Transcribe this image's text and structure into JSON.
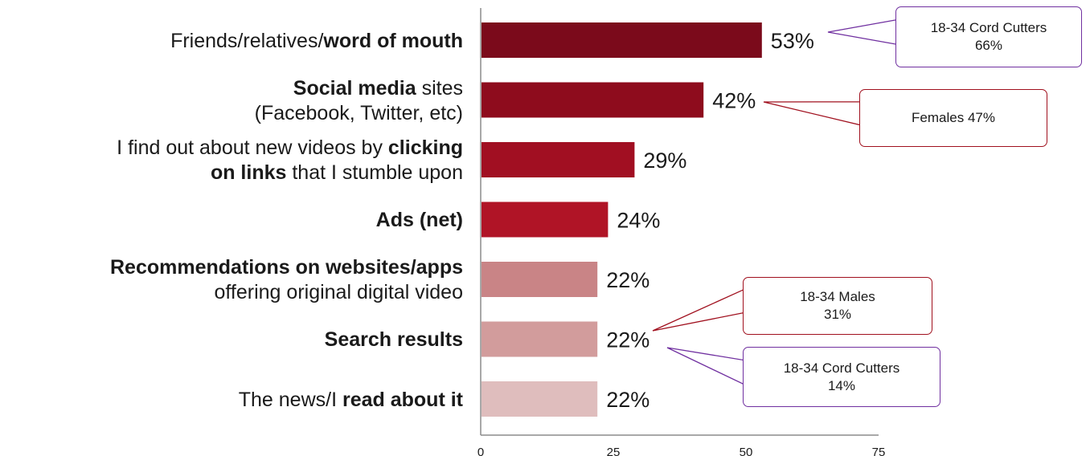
{
  "chart_data": {
    "type": "bar",
    "orientation": "horizontal",
    "categories": [
      {
        "parts": [
          {
            "text": "Friends/relatives/",
            "bold": false
          },
          {
            "text": "word of mouth",
            "bold": true
          }
        ]
      },
      {
        "parts": [
          {
            "text": "Social media",
            "bold": true
          },
          {
            "text": " sites",
            "bold": false
          },
          {
            "text": "(Facebook, Twitter, etc)",
            "bold": false,
            "newline": true
          }
        ]
      },
      {
        "parts": [
          {
            "text": "I find out about new videos by ",
            "bold": false
          },
          {
            "text": "clicking",
            "bold": true
          },
          {
            "text": "on links",
            "bold": true,
            "newline": true
          },
          {
            "text": " that I stumble upon",
            "bold": false
          }
        ]
      },
      {
        "parts": [
          {
            "text": "Ads (net)",
            "bold": true
          }
        ]
      },
      {
        "parts": [
          {
            "text": "Recommendations on websites/apps",
            "bold": true
          },
          {
            "text": "offering original digital video",
            "bold": false,
            "newline": true
          }
        ]
      },
      {
        "parts": [
          {
            "text": "Search results",
            "bold": true
          }
        ]
      },
      {
        "parts": [
          {
            "text": "The news/I ",
            "bold": false
          },
          {
            "text": "read about it",
            "bold": true
          }
        ]
      }
    ],
    "values": [
      53,
      42,
      29,
      24,
      22,
      22,
      22
    ],
    "value_labels": [
      "53%",
      "42%",
      "29%",
      "24%",
      "22%",
      "22%",
      "22%"
    ],
    "bar_colors": [
      "#7b0a1b",
      "#8e0c1d",
      "#a10f22",
      "#b01426",
      "#c98486",
      "#d29c9c",
      "#dfbdbd"
    ],
    "xlim": [
      0,
      75
    ],
    "xticks": [
      0,
      25,
      50,
      75
    ],
    "xtick_labels": [
      "0",
      "25",
      "50",
      "75"
    ],
    "grid": false,
    "annotations": [
      {
        "lines": [
          "18-34 Cord Cutters",
          "66%"
        ],
        "bar_index": 0,
        "border_color": "#7030a0"
      },
      {
        "lines": [
          "Females 47%"
        ],
        "bar_index": 1,
        "border_color": "#a0101e"
      },
      {
        "lines": [
          "18-34 Males",
          "31%"
        ],
        "bar_index": 5,
        "border_color": "#a0101e"
      },
      {
        "lines": [
          "18-34 Cord Cutters",
          "14%"
        ],
        "bar_index": 5,
        "border_color": "#7030a0"
      }
    ]
  }
}
